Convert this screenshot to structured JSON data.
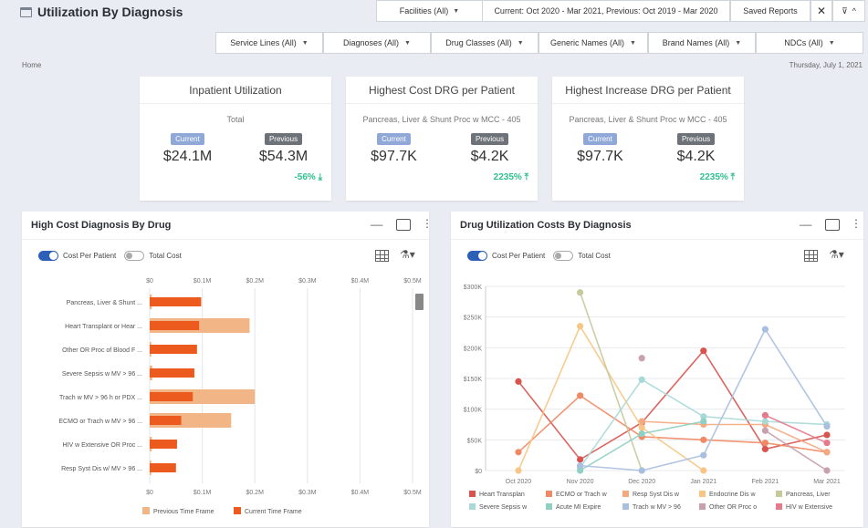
{
  "header": {
    "title": "Utilization By Diagnosis",
    "facilities": "Facilities (All)",
    "period": "Current: Oct 2020 - Mar 2021, Previous: Oct 2019 - Mar 2020",
    "saved_reports": "Saved Reports",
    "close_glyph": "✕"
  },
  "filters": [
    {
      "label": "Service Lines (All)"
    },
    {
      "label": "Diagnoses (All)"
    },
    {
      "label": "Drug Classes (All)"
    },
    {
      "label": "Generic Names (All)"
    },
    {
      "label": "Brand Names (All)"
    },
    {
      "label": "NDCs (All)"
    }
  ],
  "breadcrumb": "Home",
  "date": "Thursday, July 1, 2021",
  "cards": [
    {
      "title": "Inpatient Utilization",
      "subtitle": "Total",
      "current_label": "Current",
      "previous_label": "Previous",
      "current": "$24.1M",
      "previous": "$54.3M",
      "change": "-56%",
      "change_arrow": "⤓"
    },
    {
      "title": "Highest Cost DRG per Patient",
      "subtitle": "Pancreas, Liver & Shunt Proc w MCC - 405",
      "current_label": "Current",
      "previous_label": "Previous",
      "current": "$97.7K",
      "previous": "$4.2K",
      "change": "2235%",
      "change_arrow": "⤒"
    },
    {
      "title": "Highest Increase DRG per Patient",
      "subtitle": "Pancreas, Liver & Shunt Proc w MCC - 405",
      "current_label": "Current",
      "previous_label": "Previous",
      "current": "$97.7K",
      "previous": "$4.2K",
      "change": "2235%",
      "change_arrow": "⤒"
    }
  ],
  "left_panel": {
    "title": "High Cost Diagnosis By Drug",
    "toggle_on": "Cost Per Patient",
    "toggle_off": "Total Cost"
  },
  "right_panel": {
    "title": "Drug Utilization Costs By Diagnosis",
    "toggle_on": "Cost Per Patient",
    "toggle_off": "Total Cost"
  },
  "chart_data": [
    {
      "type": "bar",
      "orientation": "horizontal",
      "categories": [
        "Pancreas, Liver & Shunt ...",
        "Heart Transplant or Hear ...",
        "Other OR Proc of Blood F ...",
        "Severe Sepsis w MV > 96 ...",
        "Trach w MV > 96 h or PDX ...",
        "ECMO or Trach w MV > 96 ...",
        "HIV w Extensive OR Proc ...",
        "Resp Syst Dis w/ MV > 96 ..."
      ],
      "x_ticks": [
        "$0",
        "$0.1M",
        "$0.2M",
        "$0.3M",
        "$0.4M",
        "$0.5M"
      ],
      "xlim": [
        0,
        0.5
      ],
      "series": [
        {
          "name": "Previous Time Frame",
          "color": "#f2b585",
          "values": [
            0.004,
            0.19,
            0.003,
            0.005,
            0.2,
            0.155,
            0.004,
            0.003
          ]
        },
        {
          "name": "Current Time Frame",
          "color": "#ec5a1e",
          "values": [
            0.098,
            0.094,
            0.09,
            0.085,
            0.082,
            0.06,
            0.052,
            0.05
          ]
        }
      ],
      "legend": "bottom"
    },
    {
      "type": "line",
      "categories": [
        "Oct 2020",
        "Nov 2020",
        "Dec 2020",
        "Jan 2021",
        "Feb 2021",
        "Mar 2021"
      ],
      "y_ticks": [
        "$0",
        "$50K",
        "$100K",
        "$150K",
        "$200K",
        "$250K",
        "$300K"
      ],
      "ylim": [
        0,
        300000
      ],
      "series": [
        {
          "name": "Heart Transplan",
          "color": "#d9534f",
          "values": [
            145000,
            18000,
            78000,
            195000,
            35000,
            58000
          ]
        },
        {
          "name": "ECMO or Trach w",
          "color": "#f08a64",
          "values": [
            30000,
            122000,
            55000,
            50000,
            45000,
            30000
          ]
        },
        {
          "name": "Resp Syst Dis w",
          "color": "#f5a97f",
          "values": [
            null,
            null,
            80000,
            75000,
            75000,
            30000
          ]
        },
        {
          "name": "Endocrine Dis w",
          "color": "#f7c585",
          "values": [
            0,
            235000,
            70000,
            0,
            null,
            null
          ]
        },
        {
          "name": "Pancreas, Liver",
          "color": "#c7c99c",
          "values": [
            null,
            290000,
            0,
            null,
            null,
            null
          ]
        },
        {
          "name": "Severe Sepsis w",
          "color": "#a9d9d6",
          "values": [
            null,
            5000,
            148000,
            88000,
            80000,
            75000
          ]
        },
        {
          "name": "Acute MI Expire",
          "color": "#8fcfc4",
          "values": [
            null,
            0,
            60000,
            80000,
            null,
            null
          ]
        },
        {
          "name": "Trach w MV > 96",
          "color": "#a8bfe0",
          "values": [
            null,
            8000,
            0,
            25000,
            230000,
            72000
          ]
        },
        {
          "name": "Other OR Proc o",
          "color": "#c9a0ad",
          "values": [
            null,
            null,
            183000,
            null,
            65000,
            0
          ]
        },
        {
          "name": "HIV w Extensive",
          "color": "#e57a8c",
          "values": [
            null,
            null,
            null,
            null,
            90000,
            45000
          ]
        }
      ],
      "legend": "bottom"
    }
  ]
}
